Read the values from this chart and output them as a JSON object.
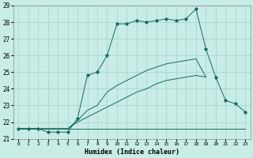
{
  "title": "",
  "xlabel": "Humidex (Indice chaleur)",
  "xlim": [
    -0.5,
    23.5
  ],
  "ylim": [
    21.0,
    29.0
  ],
  "yticks": [
    21,
    22,
    23,
    24,
    25,
    26,
    27,
    28,
    29
  ],
  "xticks": [
    0,
    1,
    2,
    3,
    4,
    5,
    6,
    7,
    8,
    9,
    10,
    11,
    12,
    13,
    14,
    15,
    16,
    17,
    18,
    19,
    20,
    21,
    22,
    23
  ],
  "bg_color": "#c8ece6",
  "line_color": "#1a6b5a",
  "grid_color": "#aad6ce",
  "main_x": [
    0,
    1,
    2,
    3,
    4,
    5,
    6,
    7,
    8,
    9,
    10,
    11,
    12,
    13,
    14,
    15,
    16,
    17,
    18,
    19,
    20,
    21,
    22,
    23
  ],
  "main_y": [
    21.6,
    21.6,
    21.6,
    21.4,
    21.4,
    21.4,
    22.2,
    24.8,
    25.0,
    26.0,
    27.9,
    27.9,
    28.1,
    28.0,
    28.1,
    28.2,
    28.1,
    28.2,
    28.8,
    26.4,
    24.7,
    23.3,
    23.1,
    22.6
  ],
  "flat_x": [
    0,
    1,
    2,
    3,
    4,
    5,
    6,
    7,
    8,
    9,
    10,
    11,
    12,
    13,
    14,
    15,
    16,
    17,
    18,
    19,
    23
  ],
  "flat_y": [
    21.6,
    21.6,
    21.6,
    21.6,
    21.6,
    21.6,
    21.6,
    21.6,
    21.6,
    21.6,
    21.6,
    21.6,
    21.6,
    21.6,
    21.6,
    21.6,
    21.6,
    21.6,
    21.6,
    21.6,
    21.6
  ],
  "upper_diag_x": [
    0,
    5,
    6,
    7,
    8,
    9,
    10,
    11,
    12,
    13,
    14,
    15,
    16,
    17,
    18,
    19
  ],
  "upper_diag_y": [
    21.6,
    21.6,
    22.1,
    22.7,
    23.0,
    23.8,
    24.2,
    24.5,
    24.8,
    25.1,
    25.3,
    25.5,
    25.6,
    25.7,
    25.8,
    24.7
  ],
  "lower_diag_x": [
    0,
    4,
    5,
    6,
    7,
    8,
    9,
    10,
    11,
    12,
    13,
    14,
    15,
    16,
    17,
    18,
    19
  ],
  "lower_diag_y": [
    21.6,
    21.6,
    21.6,
    22.0,
    22.3,
    22.6,
    22.9,
    23.2,
    23.5,
    23.8,
    24.0,
    24.3,
    24.5,
    24.6,
    24.7,
    24.8,
    24.7
  ]
}
